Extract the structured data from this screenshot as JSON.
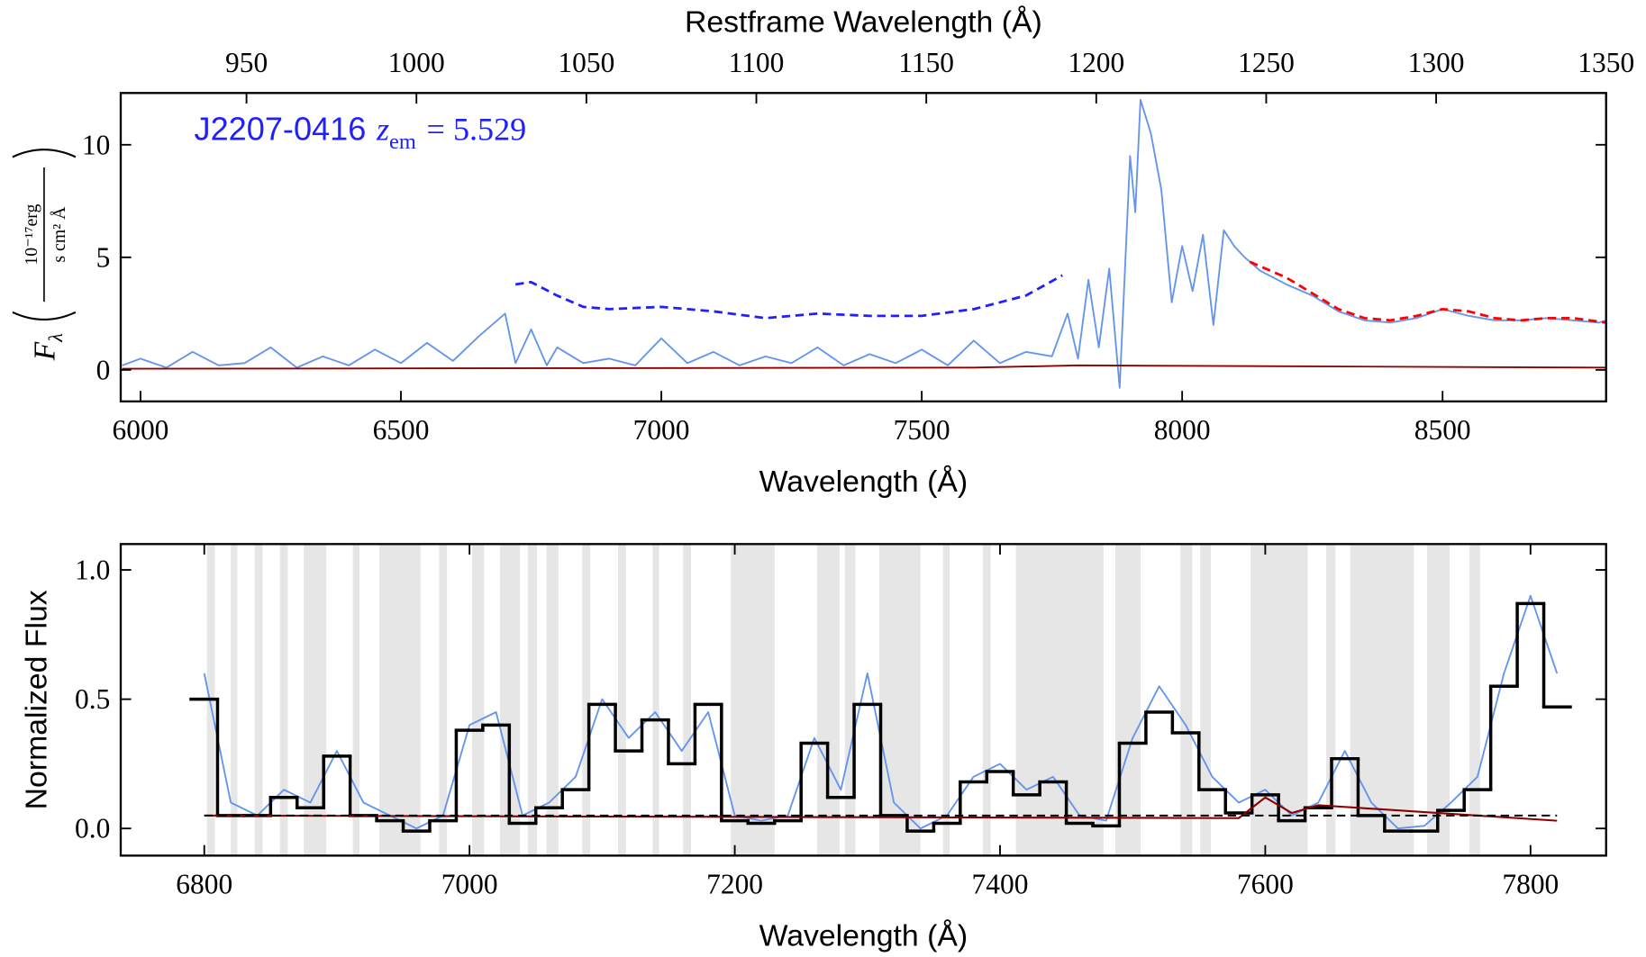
{
  "chart_data": [
    {
      "type": "line",
      "xlabel": "Wavelength (Å)",
      "x2label": "Restframe Wavelength (Å)",
      "ylabel": {
        "symbol": "F",
        "sub": "λ",
        "numerator": "10⁻¹⁷erg",
        "denominator": "s cm² Å"
      },
      "annotation": {
        "name": "J2207-0416",
        "symbol": "z",
        "sub": "em",
        "value": "= 5.529",
        "color": "#1f1fff"
      },
      "xlim": [
        5962,
        8814
      ],
      "ylim": [
        -1.4,
        12.3
      ],
      "xticks": [
        6000,
        6500,
        7000,
        7500,
        8000,
        8500
      ],
      "yticks": [
        0,
        5,
        10
      ],
      "x2lim": [
        913,
        1350
      ],
      "x2ticks": [
        950,
        1000,
        1050,
        1100,
        1150,
        1200,
        1250,
        1300,
        1350
      ],
      "series": [
        {
          "color": "#6495ed",
          "width": 1.6,
          "x": [
            5965,
            6000,
            6050,
            6100,
            6150,
            6200,
            6250,
            6300,
            6350,
            6400,
            6450,
            6500,
            6550,
            6600,
            6650,
            6700,
            6720,
            6750,
            6780,
            6800,
            6850,
            6900,
            6950,
            7000,
            7050,
            7100,
            7150,
            7200,
            7250,
            7300,
            7350,
            7400,
            7450,
            7500,
            7550,
            7600,
            7650,
            7700,
            7750,
            7780,
            7800,
            7820,
            7840,
            7860,
            7880,
            7900,
            7910,
            7920,
            7940,
            7960,
            7980,
            8000,
            8020,
            8040,
            8060,
            8080,
            8100,
            8120,
            8150,
            8200,
            8250,
            8300,
            8350,
            8400,
            8450,
            8500,
            8550,
            8600,
            8650,
            8700,
            8750,
            8800,
            8814
          ],
          "values": [
            0.2,
            0.5,
            0.1,
            0.8,
            0.2,
            0.3,
            1.0,
            0.1,
            0.6,
            0.2,
            0.9,
            0.3,
            1.2,
            0.4,
            1.5,
            2.5,
            0.3,
            1.8,
            0.2,
            1.0,
            0.3,
            0.5,
            0.2,
            1.4,
            0.3,
            0.8,
            0.2,
            0.6,
            0.3,
            1.0,
            0.2,
            0.7,
            0.3,
            0.9,
            0.2,
            1.3,
            0.3,
            0.8,
            0.6,
            2.5,
            0.5,
            4.0,
            1.0,
            4.5,
            -0.8,
            9.5,
            7.0,
            12.0,
            10.5,
            8.0,
            3.0,
            5.5,
            3.5,
            6.0,
            2.0,
            6.2,
            5.5,
            5.0,
            4.4,
            3.8,
            3.3,
            2.6,
            2.2,
            2.1,
            2.3,
            2.7,
            2.4,
            2.2,
            2.2,
            2.3,
            2.2,
            2.1,
            2.2
          ]
        },
        {
          "color": "#8b0000",
          "width": 1.6,
          "x": [
            5965,
            7600,
            7800,
            8814
          ],
          "values": [
            0.05,
            0.1,
            0.2,
            0.1
          ]
        },
        {
          "color": "#1f1fff",
          "width": 2.4,
          "dash": true,
          "x": [
            6720,
            6750,
            6800,
            6850,
            6900,
            7000,
            7100,
            7200,
            7300,
            7400,
            7500,
            7600,
            7700,
            7770
          ],
          "values": [
            3.8,
            3.9,
            3.3,
            2.8,
            2.7,
            2.8,
            2.6,
            2.3,
            2.5,
            2.4,
            2.4,
            2.7,
            3.3,
            4.2
          ]
        },
        {
          "color": "#ff0000",
          "width": 2.4,
          "dash": true,
          "x": [
            8130,
            8200,
            8250,
            8300,
            8350,
            8400,
            8450,
            8500,
            8550,
            8600,
            8650,
            8700,
            8750,
            8814
          ],
          "values": [
            4.8,
            4.1,
            3.4,
            2.7,
            2.3,
            2.2,
            2.4,
            2.7,
            2.6,
            2.3,
            2.2,
            2.3,
            2.3,
            2.1
          ]
        }
      ]
    },
    {
      "type": "line",
      "xlabel": "Wavelength (Å)",
      "ylabel": "Normalized Flux",
      "xlim": [
        6737,
        7857
      ],
      "ylim": [
        -0.105,
        1.1
      ],
      "xticks": [
        6800,
        7000,
        7200,
        7400,
        7600,
        7800
      ],
      "yticks": [
        {
          "value": 0,
          "label": "0.0"
        },
        {
          "value": 0.5,
          "label": "0.5"
        },
        {
          "value": 1,
          "label": "1.0"
        }
      ],
      "shade_color": "#e6e6e6",
      "shaded": [
        [
          6802,
          6808
        ],
        [
          6820,
          6825
        ],
        [
          6838,
          6844
        ],
        [
          6857,
          6863
        ],
        [
          6875,
          6892
        ],
        [
          6912,
          6917
        ],
        [
          6932,
          6963
        ],
        [
          6977,
          6983
        ],
        [
          7002,
          7011
        ],
        [
          7023,
          7038
        ],
        [
          7044,
          7051
        ],
        [
          7058,
          7067
        ],
        [
          7085,
          7091
        ],
        [
          7112,
          7118
        ],
        [
          7138,
          7143
        ],
        [
          7161,
          7167
        ],
        [
          7197,
          7230
        ],
        [
          7262,
          7279
        ],
        [
          7283,
          7291
        ],
        [
          7309,
          7340
        ],
        [
          7357,
          7362
        ],
        [
          7387,
          7393
        ],
        [
          7412,
          7478
        ],
        [
          7487,
          7506
        ],
        [
          7536,
          7545
        ],
        [
          7551,
          7559
        ],
        [
          7589,
          7632
        ],
        [
          7646,
          7653
        ],
        [
          7664,
          7712
        ],
        [
          7722,
          7739
        ],
        [
          7754,
          7762
        ]
      ],
      "series": [
        {
          "color": "#6495ed",
          "width": 1.6,
          "x": [
            6800,
            6820,
            6840,
            6860,
            6880,
            6900,
            6920,
            6940,
            6960,
            6980,
            7000,
            7020,
            7040,
            7060,
            7080,
            7100,
            7120,
            7140,
            7160,
            7180,
            7200,
            7220,
            7240,
            7260,
            7280,
            7300,
            7320,
            7340,
            7360,
            7380,
            7400,
            7420,
            7440,
            7460,
            7480,
            7500,
            7520,
            7540,
            7560,
            7580,
            7600,
            7620,
            7640,
            7660,
            7680,
            7700,
            7720,
            7740,
            7760,
            7780,
            7800,
            7820
          ],
          "values": [
            0.6,
            0.1,
            0.05,
            0.15,
            0.1,
            0.3,
            0.1,
            0.05,
            0.0,
            0.05,
            0.4,
            0.45,
            0.05,
            0.1,
            0.2,
            0.5,
            0.35,
            0.45,
            0.3,
            0.45,
            0.05,
            0.03,
            0.05,
            0.35,
            0.15,
            0.6,
            0.1,
            0.0,
            0.05,
            0.2,
            0.25,
            0.15,
            0.2,
            0.05,
            0.03,
            0.35,
            0.55,
            0.4,
            0.2,
            0.1,
            0.15,
            0.05,
            0.1,
            0.3,
            0.1,
            0.0,
            0.01,
            0.1,
            0.2,
            0.6,
            0.9,
            0.6
          ]
        },
        {
          "color": "#000000",
          "width": 3,
          "step": true,
          "x": [
            6800,
            6820,
            6840,
            6860,
            6880,
            6900,
            6920,
            6940,
            6960,
            6980,
            7000,
            7020,
            7040,
            7060,
            7080,
            7100,
            7120,
            7140,
            7160,
            7180,
            7200,
            7220,
            7240,
            7260,
            7280,
            7300,
            7320,
            7340,
            7360,
            7380,
            7400,
            7420,
            7440,
            7460,
            7480,
            7500,
            7520,
            7540,
            7560,
            7580,
            7600,
            7620,
            7640,
            7660,
            7680,
            7700,
            7720,
            7740,
            7760,
            7780,
            7800,
            7820
          ],
          "values": [
            0.5,
            0.05,
            0.05,
            0.12,
            0.08,
            0.28,
            0.05,
            0.03,
            -0.01,
            0.03,
            0.38,
            0.4,
            0.02,
            0.08,
            0.15,
            0.48,
            0.3,
            0.42,
            0.25,
            0.48,
            0.03,
            0.02,
            0.03,
            0.33,
            0.12,
            0.48,
            0.05,
            -0.01,
            0.02,
            0.18,
            0.22,
            0.13,
            0.18,
            0.02,
            0.01,
            0.33,
            0.45,
            0.37,
            0.15,
            0.06,
            0.13,
            0.03,
            0.08,
            0.27,
            0.05,
            -0.01,
            -0.01,
            0.07,
            0.15,
            0.55,
            0.87,
            0.47
          ]
        },
        {
          "color": "#8b0000",
          "width": 1.8,
          "x": [
            6800,
            7580,
            7600,
            7620,
            7640,
            7820
          ],
          "values": [
            0.05,
            0.04,
            0.12,
            0.06,
            0.09,
            0.03
          ]
        },
        {
          "color": "#000000",
          "width": 1.8,
          "dash": true,
          "x": [
            6800,
            7820
          ],
          "values": [
            0.05,
            0.05
          ]
        }
      ]
    }
  ]
}
